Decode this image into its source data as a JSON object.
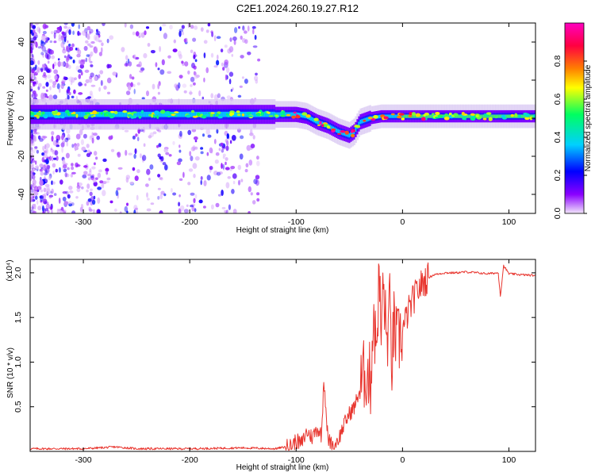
{
  "title": "C2E1.2024.260.19.27.R12",
  "chart_data": [
    {
      "type": "heatmap",
      "xlabel": "Height of straight line (km)",
      "ylabel": "Frequency (Hz)",
      "xlim": [
        -350,
        125
      ],
      "ylim": [
        -50,
        50
      ],
      "xticks": [
        -300,
        -200,
        -100,
        0,
        100
      ],
      "yticks": [
        -40,
        -20,
        0,
        20,
        40
      ],
      "colorbar": {
        "label": "Normalized spectral amplitude",
        "range": [
          0.0,
          1.0
        ],
        "ticks": [
          "0.0",
          "0.2",
          "0.4",
          "0.6",
          "0.8"
        ],
        "colors": [
          "#f2e6fa",
          "#8a00ff",
          "#0000ff",
          "#00d0ff",
          "#00ff60",
          "#ffff00",
          "#ff8000",
          "#ff0040",
          "#ff00c0"
        ]
      },
      "ridge_center_hz": {
        "x": [
          -350,
          -300,
          -250,
          -200,
          -150,
          -120,
          -100,
          -90,
          -80,
          -70,
          -60,
          -50,
          -45,
          -40,
          -30,
          -20,
          -10,
          0,
          20,
          60,
          100,
          125
        ],
        "y": [
          2,
          2,
          2,
          2,
          2,
          2,
          2,
          1,
          -2,
          -4,
          -7,
          -9,
          -7,
          -2,
          0,
          1,
          1,
          1,
          1,
          1,
          1,
          1
        ]
      },
      "noise_scatter_xrange": [
        -350,
        -135
      ]
    },
    {
      "type": "line",
      "xlabel": "Height of straight line (km)",
      "ylabel": "SNR (10 * v/v)",
      "scale_note": "(x10⁴)",
      "xlim": [
        -350,
        125
      ],
      "ylim": [
        0,
        2.15
      ],
      "xticks": [
        -300,
        -200,
        -100,
        0,
        100
      ],
      "yticks": [
        "0.5",
        "1.0",
        "1.5",
        "2.0"
      ],
      "series": [
        {
          "color": "#e8352e",
          "x": [
            -350,
            -300,
            -270,
            -250,
            -200,
            -150,
            -120,
            -105,
            -100,
            -95,
            -90,
            -85,
            -80,
            -76,
            -74,
            -70,
            -65,
            -60,
            -55,
            -50,
            -45,
            -40,
            -35,
            -30,
            -27,
            -25,
            -22,
            -20,
            -18,
            -15,
            -12,
            -10,
            -8,
            -5,
            0,
            5,
            10,
            15,
            20,
            25,
            30,
            40,
            50,
            60,
            80,
            90,
            92,
            95,
            100,
            110,
            125
          ],
          "y": [
            0.03,
            0.03,
            0.05,
            0.03,
            0.03,
            0.04,
            0.03,
            0.06,
            0.12,
            0.08,
            0.22,
            0.16,
            0.26,
            0.18,
            0.85,
            0.12,
            0.08,
            0.14,
            0.3,
            0.42,
            0.5,
            0.7,
            0.9,
            0.8,
            1.6,
            1.1,
            1.95,
            1.3,
            1.9,
            1.2,
            1.6,
            1.0,
            1.4,
            1.2,
            1.35,
            1.55,
            1.7,
            1.82,
            1.9,
            1.95,
            1.98,
            2.0,
            2.0,
            2.01,
            1.99,
            2.0,
            1.74,
            2.08,
            1.99,
            1.98,
            1.97
          ]
        }
      ]
    }
  ]
}
